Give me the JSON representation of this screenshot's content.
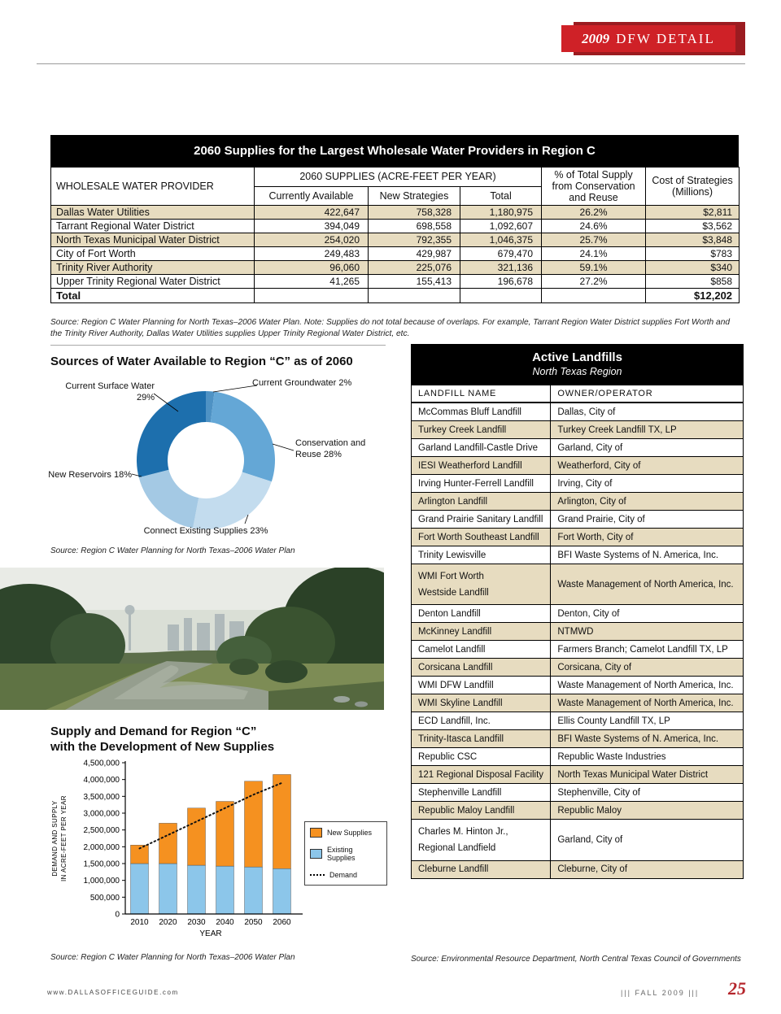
{
  "banner": {
    "year": "2009",
    "title": "DFW DETAIL"
  },
  "supply_table": {
    "title": "2060 Supplies for the Largest Wholesale Water Providers in Region C",
    "col_provider": "WHOLESALE WATER PROVIDER",
    "group_header": "2060 SUPPLIES (ACRE-FEET PER YEAR)",
    "sub_headers": [
      "Currently Available",
      "New Strategies",
      "Total"
    ],
    "col_pct": "% of Total Supply from Conservation and Reuse",
    "col_cost": "Cost of Strategies (Millions)",
    "rows": [
      {
        "provider": "Dallas Water Utilities",
        "available": "422,647",
        "new_strategies": "758,328",
        "total": "1,180,975",
        "pct": "26.2%",
        "cost": "$2,811"
      },
      {
        "provider": "Tarrant Regional Water District",
        "available": "394,049",
        "new_strategies": "698,558",
        "total": "1,092,607",
        "pct": "24.6%",
        "cost": "$3,562"
      },
      {
        "provider": "North Texas Municipal Water District",
        "available": "254,020",
        "new_strategies": "792,355",
        "total": "1,046,375",
        "pct": "25.7%",
        "cost": "$3,848"
      },
      {
        "provider": "City of Fort Worth",
        "available": "249,483",
        "new_strategies": "429,987",
        "total": "679,470",
        "pct": "24.1%",
        "cost": "$783"
      },
      {
        "provider": "Trinity River Authority",
        "available": "96,060",
        "new_strategies": "225,076",
        "total": "321,136",
        "pct": "59.1%",
        "cost": "$340"
      },
      {
        "provider": "Upper Trinity Regional Water District",
        "available": "41,265",
        "new_strategies": "155,413",
        "total": "196,678",
        "pct": "27.2%",
        "cost": "$858"
      }
    ],
    "total_row": {
      "label": "Total",
      "cost": "$12,202"
    },
    "source": "Source:  Region C Water Planning for North Texas–2006 Water Plan. Note:  Supplies do not total because of overlaps. For example, Tarrant Region Water District supplies Fort Worth and the Trinity River Authority, Dallas Water Utilities supplies Upper Trinity Regional Water District, etc."
  },
  "pie_section": {
    "title": "Sources of Water Available to Region “C” as of 2060",
    "source": "Source: Region C Water Planning for North Texas–2006 Water Plan"
  },
  "bar_section": {
    "title_line1": "Supply and Demand for Region “C”",
    "title_line2": "with the Development of New Supplies",
    "source": "Source: Region C Water Planning for North Texas–2006 Water Plan"
  },
  "landfills": {
    "title": "Active Landfills",
    "subtitle": "North Texas Region",
    "headers": [
      "LANDFILL NAME",
      "OWNER/OPERATOR"
    ],
    "rows": [
      {
        "name": "McCommas Bluff Landfill",
        "owner": "Dallas, City of"
      },
      {
        "name": "Turkey Creek Landfill",
        "owner": "Turkey Creek Landfill TX, LP"
      },
      {
        "name": "Garland Landfill-Castle Drive",
        "owner": "Garland, City of"
      },
      {
        "name": "IESI Weatherford Landfill",
        "owner": "Weatherford, City of"
      },
      {
        "name": "Irving Hunter-Ferrell Landfill",
        "owner": "Irving, City of"
      },
      {
        "name": "Arlington Landfill",
        "owner": "Arlington, City of"
      },
      {
        "name": "Grand Prairie Sanitary Landfill",
        "owner": "Grand Prairie, City of"
      },
      {
        "name": "Fort Worth Southeast Landfill",
        "owner": "Fort Worth, City of"
      },
      {
        "name": "Trinity Lewisville",
        "owner": "BFI Waste Systems of N. America, Inc."
      },
      {
        "name": "WMI Fort Worth\nWestside Landfill",
        "owner": "Waste Management of North America, Inc.",
        "tall": true
      },
      {
        "name": "Denton Landfill",
        "owner": "Denton, City of"
      },
      {
        "name": "McKinney Landfill",
        "owner": "NTMWD"
      },
      {
        "name": "Camelot Landfill",
        "owner": "Farmers Branch; Camelot Landfill TX, LP"
      },
      {
        "name": "Corsicana Landfill",
        "owner": "Corsicana, City of"
      },
      {
        "name": "WMI DFW Landfill",
        "owner": "Waste Management of North America, Inc."
      },
      {
        "name": "WMI Skyline Landfill",
        "owner": "Waste Management of North America, Inc."
      },
      {
        "name": "ECD Landfill, Inc.",
        "owner": "Ellis County Landfill TX, LP"
      },
      {
        "name": "Trinity-Itasca Landfill",
        "owner": "BFI Waste Systems of N. America, Inc."
      },
      {
        "name": "Republic CSC",
        "owner": "Republic Waste Industries"
      },
      {
        "name": "121 Regional Disposal Facility",
        "owner": "North Texas Municipal Water District"
      },
      {
        "name": "Stephenville Landfill",
        "owner": "Stephenville, City of"
      },
      {
        "name": "Republic Maloy Landfill",
        "owner": "Republic Maloy"
      },
      {
        "name": "Charles M. Hinton Jr.,\nRegional Landfield",
        "owner": "Garland, City of",
        "tall": true
      },
      {
        "name": "Cleburne Landfill",
        "owner": "Cleburne, City of"
      }
    ],
    "source": "Source: Environmental Resource Department, North Central Texas Council of Governments"
  },
  "footer": {
    "site": "www.DALLASOFFICEGUIDE.com",
    "issue": "||| FALL 2009 |||",
    "page": "25"
  },
  "chart_data": [
    {
      "type": "pie",
      "donut": true,
      "title": "Sources of Water Available to Region “C” as of 2060",
      "slices": [
        {
          "label": "Current Groundwater",
          "value": 2,
          "color": "#4e92c4"
        },
        {
          "label": "Conservation and Reuse",
          "value": 28,
          "color": "#64a7d6"
        },
        {
          "label": "Connect Existing Supplies",
          "value": 23,
          "color": "#c3dcee"
        },
        {
          "label": "New Reservoirs",
          "value": 18,
          "color": "#a4c9e4"
        },
        {
          "label": "Current Surface Water",
          "value": 29,
          "color": "#1d6fad"
        }
      ]
    },
    {
      "type": "bar",
      "stacked": true,
      "title": "Supply and Demand for Region “C” with the Development of New Supplies",
      "categories": [
        "2010",
        "2020",
        "2030",
        "2040",
        "2050",
        "2060"
      ],
      "series": [
        {
          "name": "Existing Supplies",
          "color": "#8cc6ea",
          "values": [
            1500000,
            1500000,
            1450000,
            1425000,
            1400000,
            1350000
          ]
        },
        {
          "name": "New Supplies",
          "color": "#f59120",
          "values": [
            550000,
            1200000,
            1700000,
            1925000,
            2550000,
            2800000
          ]
        }
      ],
      "line_series": {
        "name": "Demand",
        "style": "dotted",
        "color": "#111111",
        "values": [
          1950000,
          2350000,
          2750000,
          3150000,
          3550000,
          3900000
        ]
      },
      "xlabel": "YEAR",
      "ylabel": "DEMAND AND SUPPLY\nIN ACRE-FEET PER YEAR",
      "ylim": [
        0,
        4500000
      ],
      "ytick_step": 500000,
      "grid": false,
      "legend_position": "right"
    }
  ]
}
